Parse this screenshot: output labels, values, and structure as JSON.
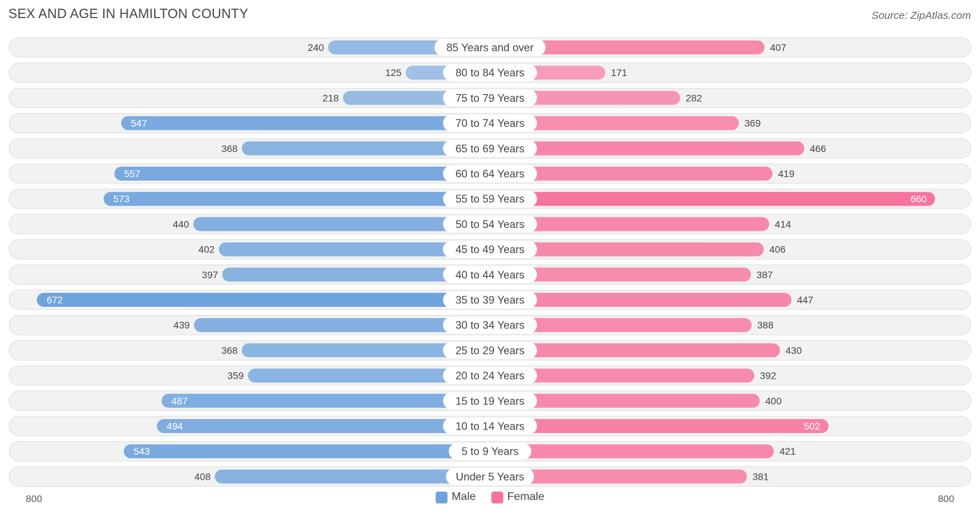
{
  "title": "SEX AND AGE IN HAMILTON COUNTY",
  "source": "Source: ZipAtlas.com",
  "colors": {
    "male": "#6fa3dd",
    "female": "#f7739c"
  },
  "legend": {
    "male": "Male",
    "female": "Female"
  },
  "axis": {
    "left_label": "800",
    "right_label": "800"
  },
  "chart_data": {
    "type": "bar",
    "orientation": "horizontal-butterfly",
    "xlim": [
      -800,
      800
    ],
    "categories": [
      "85 Years and over",
      "80 to 84 Years",
      "75 to 79 Years",
      "70 to 74 Years",
      "65 to 69 Years",
      "60 to 64 Years",
      "55 to 59 Years",
      "50 to 54 Years",
      "45 to 49 Years",
      "40 to 44 Years",
      "35 to 39 Years",
      "30 to 34 Years",
      "25 to 29 Years",
      "20 to 24 Years",
      "15 to 19 Years",
      "10 to 14 Years",
      "5 to 9 Years",
      "Under 5 Years"
    ],
    "series": [
      {
        "name": "Male",
        "values": [
          240,
          125,
          218,
          547,
          368,
          557,
          573,
          440,
          402,
          397,
          672,
          439,
          368,
          359,
          487,
          494,
          543,
          408
        ]
      },
      {
        "name": "Female",
        "values": [
          407,
          171,
          282,
          369,
          466,
          419,
          660,
          414,
          406,
          387,
          447,
          388,
          430,
          392,
          400,
          502,
          421,
          381
        ]
      }
    ],
    "legend_position": "bottom-center"
  }
}
